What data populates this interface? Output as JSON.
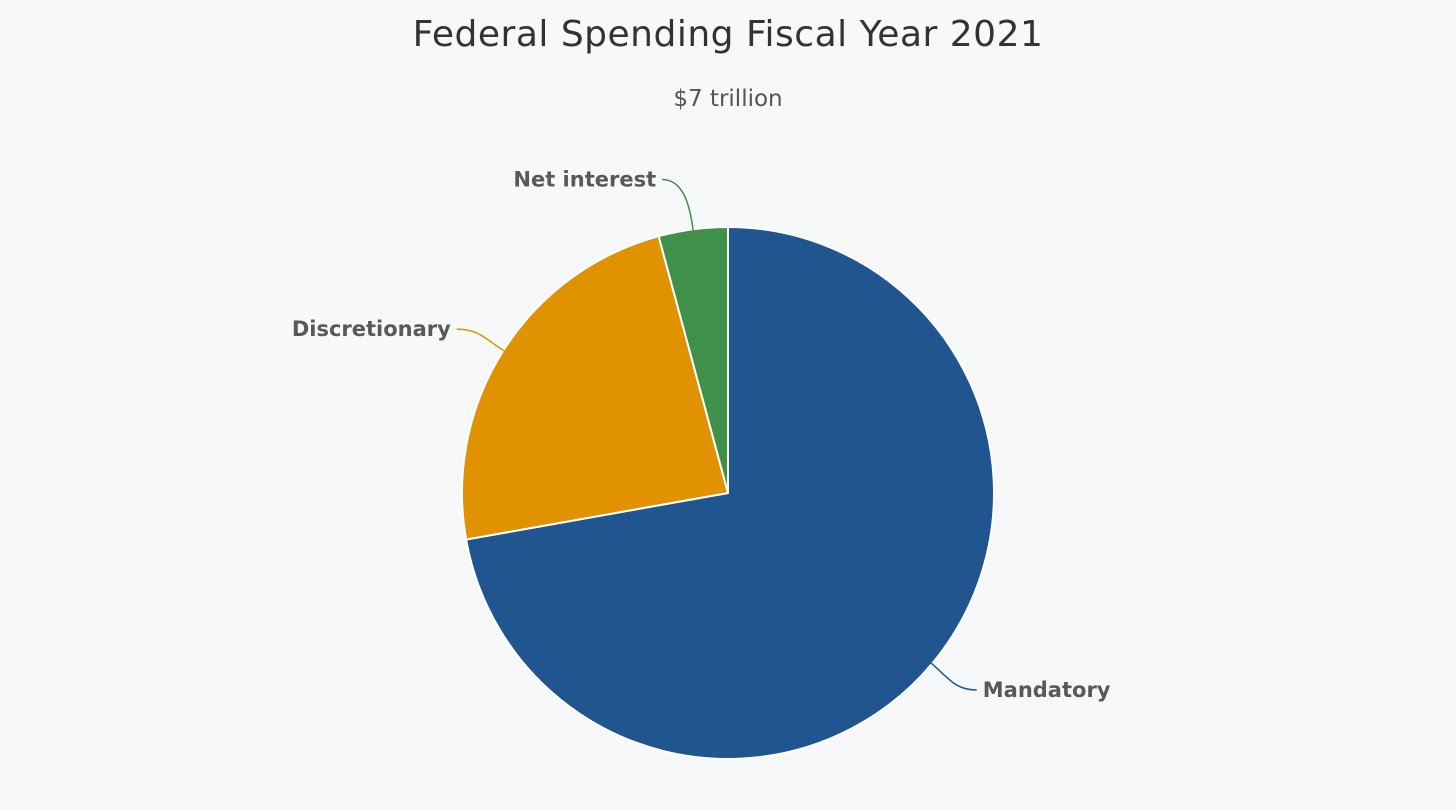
{
  "chart_data": {
    "type": "pie",
    "title": "Federal Spending Fiscal Year 2021",
    "subtitle": "$7 trillion",
    "slices": [
      {
        "label": "Mandatory",
        "value": 72.2,
        "color": "#215590"
      },
      {
        "label": "Discretionary",
        "value": 23.6,
        "color": "#e09200"
      },
      {
        "label": "Net interest",
        "value": 4.2,
        "color": "#3f9049"
      }
    ]
  }
}
